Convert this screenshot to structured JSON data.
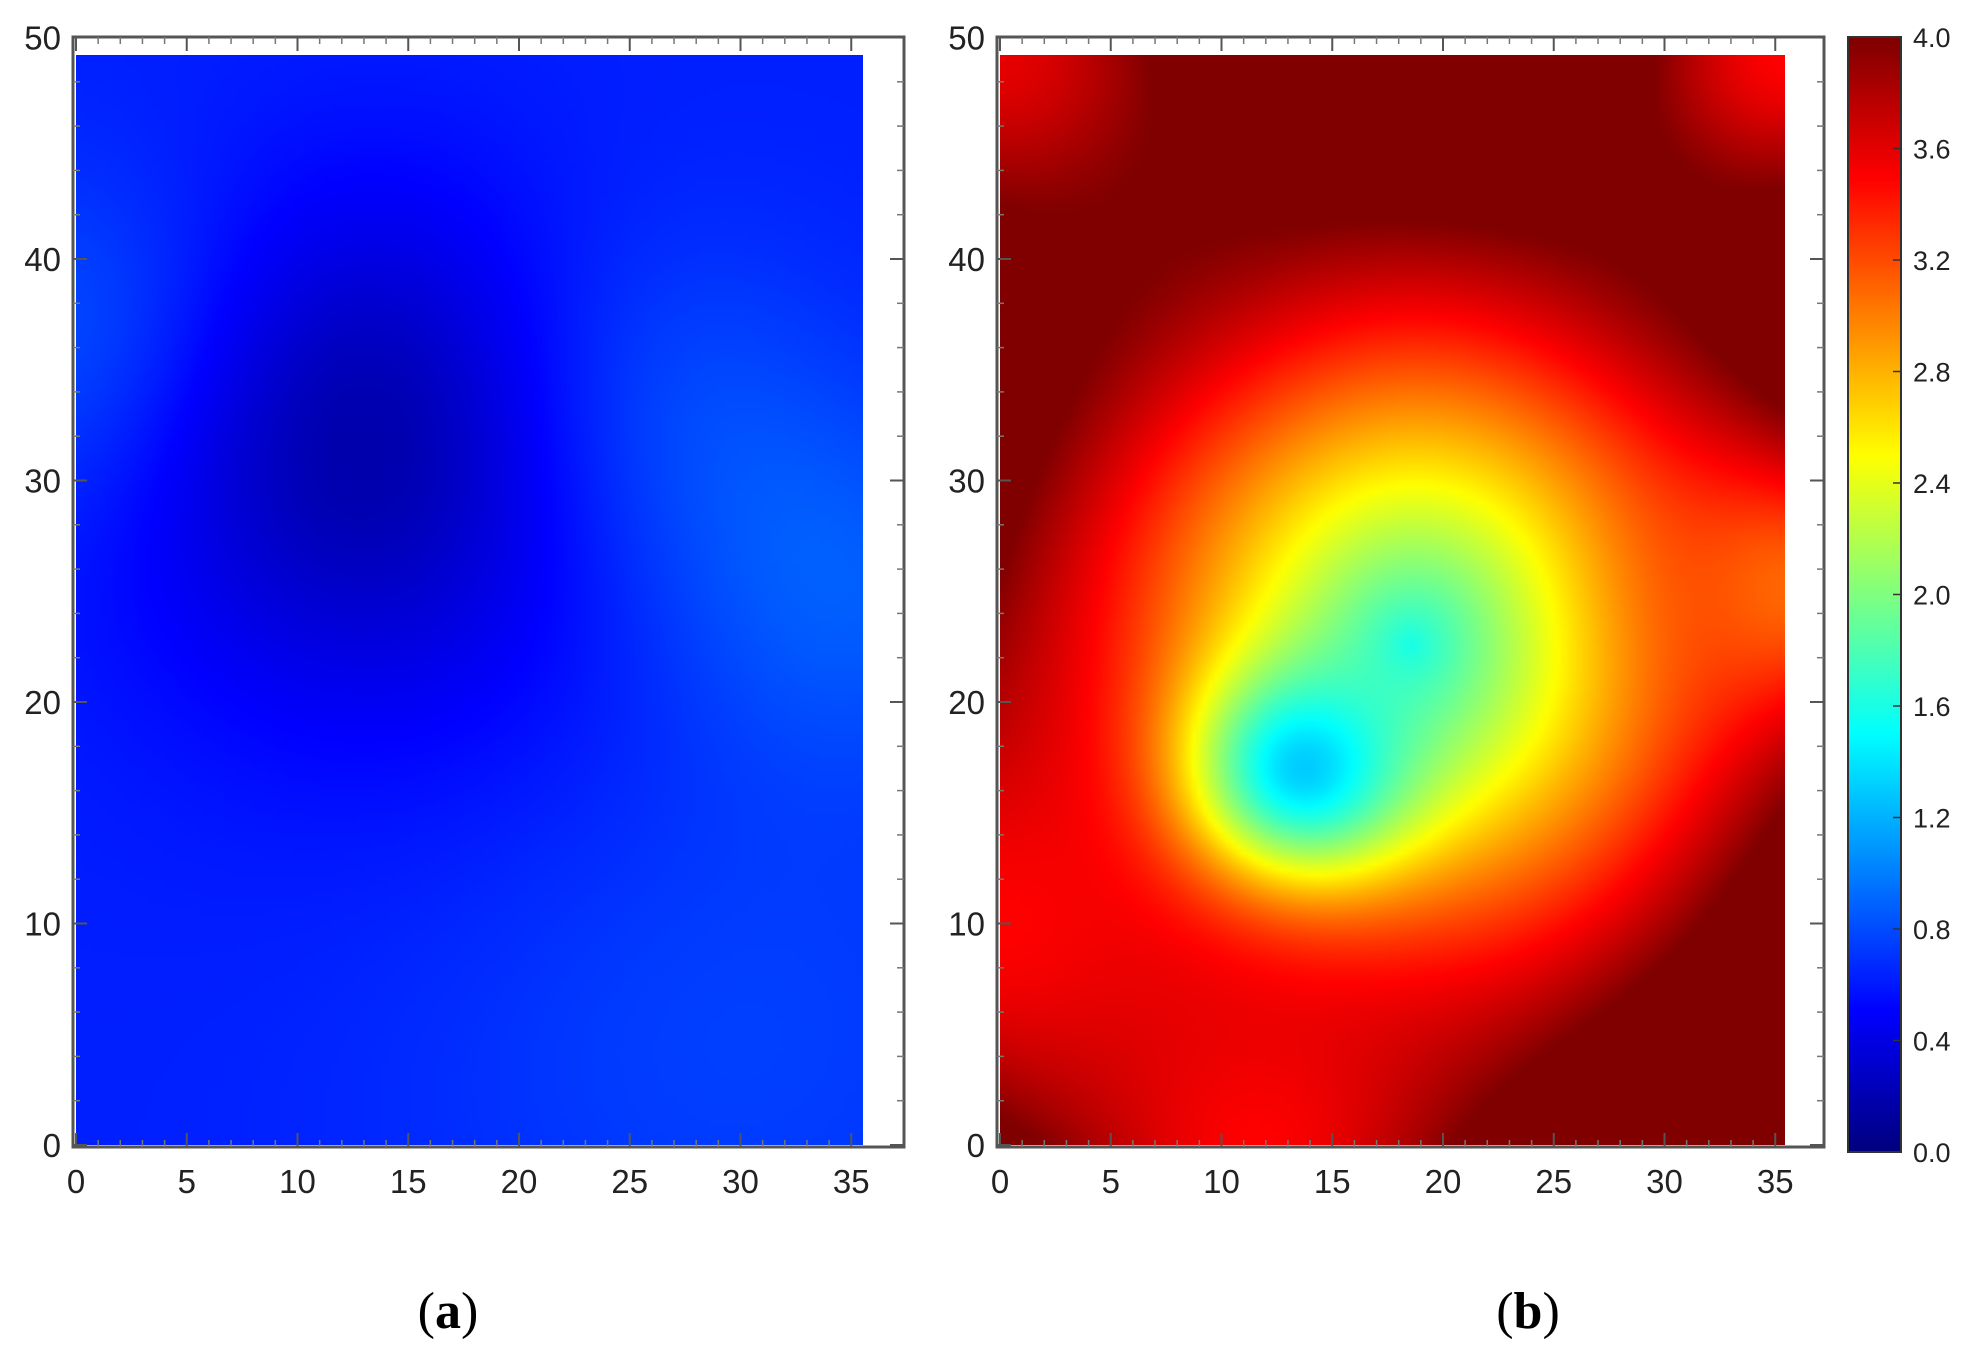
{
  "chart_data": [
    {
      "type": "heatmap",
      "panel_label": "a",
      "x_ticks": [
        0,
        5,
        10,
        15,
        20,
        25,
        30,
        35
      ],
      "y_ticks": [
        0,
        10,
        20,
        30,
        40,
        50
      ],
      "xlim": [
        0,
        35
      ],
      "ylim": [
        0,
        50
      ],
      "data_extent": {
        "x": [
          0,
          33.5
        ],
        "y": [
          0,
          49
        ]
      },
      "colormap": "jet",
      "value_range": [
        0.0,
        4.0
      ],
      "baseline_value": 0.62,
      "features": [
        {
          "x": 12.5,
          "y": 32.5,
          "value": 0.2,
          "radius": 7
        },
        {
          "x": 23.5,
          "y": 33.0,
          "value": 0.85,
          "radius": 6
        },
        {
          "x": 0.5,
          "y": 36.0,
          "value": 0.85,
          "radius": 5.5
        },
        {
          "x": 32.5,
          "y": 25.0,
          "value": 0.85,
          "radius": 6
        },
        {
          "x": 28.0,
          "y": 5.0,
          "value": 0.75,
          "radius": 10
        },
        {
          "x": 15.0,
          "y": 25.0,
          "value": 0.5,
          "radius": 9
        }
      ],
      "grid": false
    },
    {
      "type": "heatmap",
      "panel_label": "b",
      "x_ticks": [
        0,
        5,
        10,
        15,
        20,
        25,
        30,
        35
      ],
      "y_ticks": [
        0,
        10,
        20,
        30,
        40,
        50
      ],
      "xlim": [
        0,
        35
      ],
      "ylim": [
        0,
        50
      ],
      "data_extent": {
        "x": [
          0,
          33.5
        ],
        "y": [
          0,
          49
        ]
      },
      "colormap": "jet",
      "value_range": [
        0.0,
        4.0
      ],
      "colorbar": {
        "ticks": [
          "0.0",
          "0.4",
          "0.8",
          "1.2",
          "1.6",
          "2.0",
          "2.4",
          "2.8",
          "3.2",
          "3.6",
          "4.0"
        ],
        "range": [
          0.0,
          4.0
        ]
      },
      "center": {
        "x": 17.5,
        "y": 22.5,
        "value": 1.5
      },
      "radial_gradient": 0.15,
      "features": [
        {
          "x": 0,
          "y": 49,
          "value": 3.6,
          "radius": 9
        },
        {
          "x": 33.5,
          "y": 49,
          "value": 3.5,
          "radius": 7
        },
        {
          "x": 0,
          "y": 10,
          "value": 3.5,
          "radius": 9
        },
        {
          "x": 11,
          "y": 0,
          "value": 3.5,
          "radius": 7
        },
        {
          "x": 33.5,
          "y": 25,
          "value": 3.1,
          "radius": 4.5
        },
        {
          "x": 13,
          "y": 17,
          "value": 1.3,
          "radius": 3.5
        }
      ],
      "grid": false
    }
  ]
}
